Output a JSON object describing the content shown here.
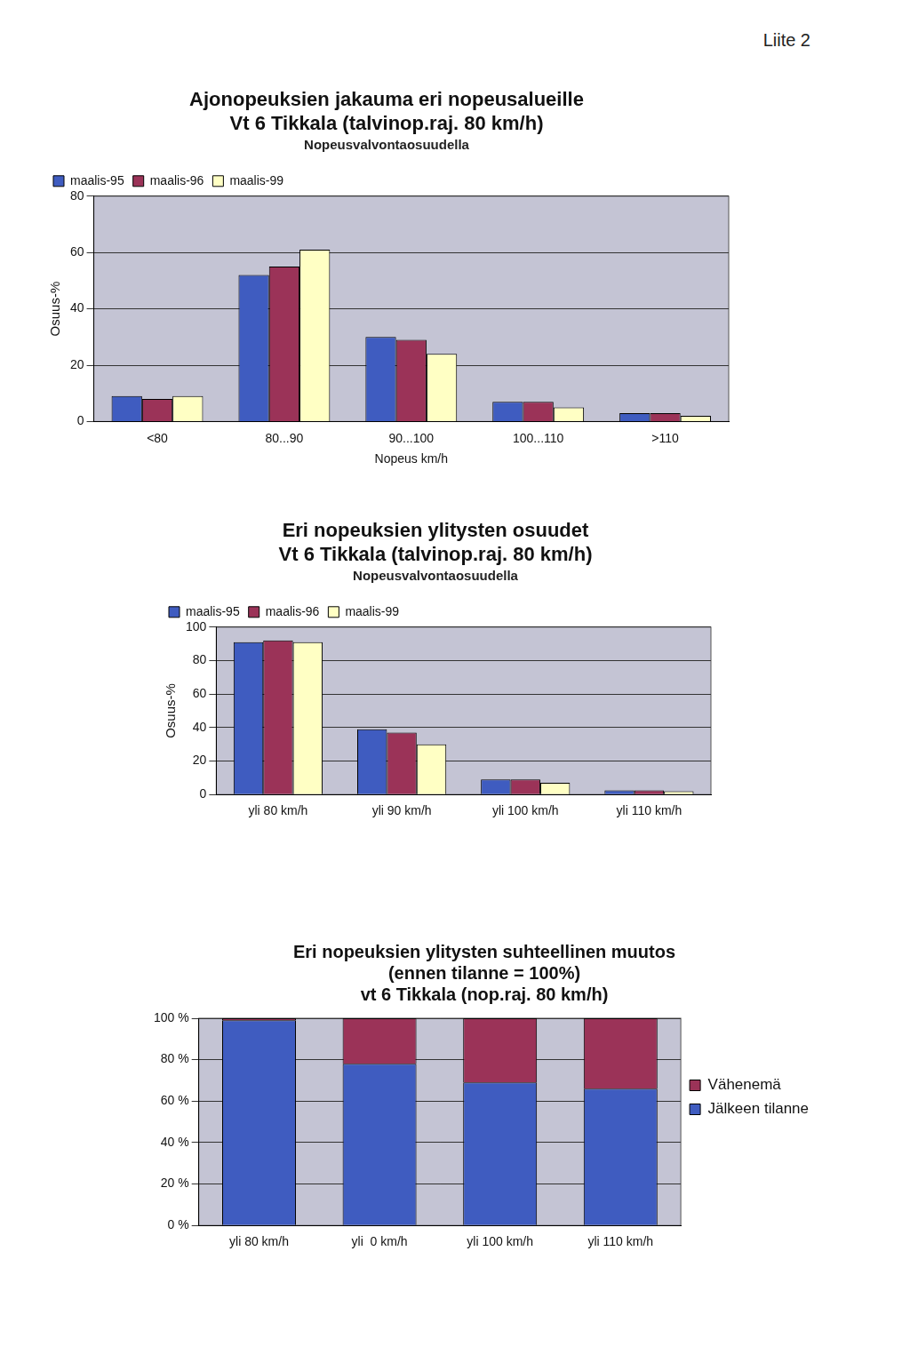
{
  "header": "Liite 2",
  "chart_data": [
    {
      "type": "bar",
      "title": [
        "Ajonopeuksien jakauma eri nopeusalueille",
        "Vt 6 Tikkala (talvinop.raj. 80 km/h)"
      ],
      "subtitle": "Nopeusvalvontaosuudella",
      "x_label": "Nopeus km/h",
      "y_label": "Osuus-%",
      "categories": [
        "<80",
        "80...90",
        "90...100",
        "100...110",
        ">110"
      ],
      "series": [
        {
          "name": "maalis-95",
          "color": "#3f5cc0",
          "values": [
            9,
            52,
            30,
            7,
            3
          ]
        },
        {
          "name": "maalis-96",
          "color": "#9b3358",
          "values": [
            8,
            55,
            29,
            7,
            3
          ]
        },
        {
          "name": "maalis-99",
          "color": "#ffffc4",
          "values": [
            9,
            61,
            24,
            5,
            2
          ]
        }
      ],
      "ylim": [
        0,
        80
      ],
      "yticks": [
        0,
        20,
        40,
        60,
        80
      ],
      "grid": true,
      "legend": "top"
    },
    {
      "type": "bar",
      "title": [
        "Eri nopeuksien ylitysten osuudet",
        "Vt 6 Tikkala (talvinop.raj. 80 km/h)"
      ],
      "subtitle": "Nopeusvalvontaosuudella",
      "y_label": "Osuus-%",
      "categories": [
        "yli 80 km/h",
        "yli 90 km/h",
        "yli 100 km/h",
        "yli 110 km/h"
      ],
      "series": [
        {
          "name": "maalis-95",
          "color": "#3f5cc0",
          "values": [
            91,
            39,
            9,
            2.5
          ]
        },
        {
          "name": "maalis-96",
          "color": "#9b3358",
          "values": [
            92,
            37,
            9,
            2.5
          ]
        },
        {
          "name": "maalis-99",
          "color": "#ffffc4",
          "values": [
            91,
            30,
            7,
            2
          ]
        }
      ],
      "ylim": [
        0,
        100
      ],
      "yticks": [
        0,
        20,
        40,
        60,
        80,
        100
      ],
      "grid": true,
      "legend": "top"
    },
    {
      "type": "bar",
      "title": [
        "Eri nopeuksien ylitysten suhteellinen muutos",
        "(ennen tilanne = 100%)",
        "vt 6 Tikkala (nop.raj. 80 km/h)"
      ],
      "categories": [
        "yli 80 km/h",
        "yli  0 km/h",
        "yli 100 km/h",
        "yli 110 km/h"
      ],
      "series": [
        {
          "name": "Jälkeen tilanne",
          "color": "#3f5cc0",
          "values": [
            99,
            78,
            69,
            66
          ]
        },
        {
          "name": "Vähenemä",
          "color": "#9b3358",
          "values": [
            1,
            22,
            31,
            34
          ]
        }
      ],
      "ylim": [
        0,
        100
      ],
      "yticks": [
        {
          "value": 0,
          "label": "0 %"
        },
        {
          "value": 20,
          "label": "20 %"
        },
        {
          "value": 40,
          "label": "40 %"
        },
        {
          "value": 60,
          "label": "60 %"
        },
        {
          "value": 80,
          "label": "80 %"
        },
        {
          "value": 100,
          "label": "100 %"
        }
      ],
      "stacked": true,
      "grid": true,
      "legend": "right"
    }
  ]
}
